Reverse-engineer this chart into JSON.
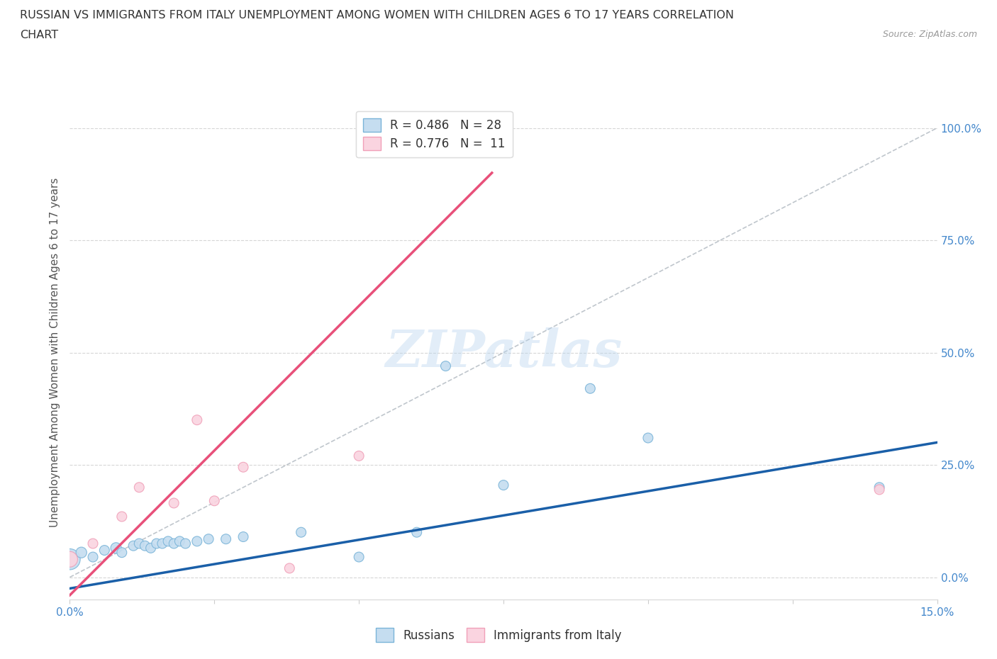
{
  "title_line1": "RUSSIAN VS IMMIGRANTS FROM ITALY UNEMPLOYMENT AMONG WOMEN WITH CHILDREN AGES 6 TO 17 YEARS CORRELATION",
  "title_line2": "CHART",
  "source": "Source: ZipAtlas.com",
  "ylabel": "Unemployment Among Women with Children Ages 6 to 17 years",
  "xlim": [
    0.0,
    0.15
  ],
  "ylim": [
    -0.05,
    1.05
  ],
  "ytick_labels": [
    "0.0%",
    "25.0%",
    "50.0%",
    "75.0%",
    "100.0%"
  ],
  "ytick_vals": [
    0.0,
    0.25,
    0.5,
    0.75,
    1.0
  ],
  "xtick_positions": [
    0.0,
    0.025,
    0.05,
    0.075,
    0.1,
    0.125,
    0.15
  ],
  "xtick_labels": [
    "0.0%",
    "",
    "",
    "",
    "",
    "",
    "15.0%"
  ],
  "bg_color": "#ffffff",
  "grid_color": "#cccccc",
  "watermark": "ZIPatlas",
  "legend_R1": "R = 0.486",
  "legend_N1": "N = 28",
  "legend_R2": "R = 0.776",
  "legend_N2": "N = 11",
  "russian_edge_color": "#7ab4d8",
  "russian_fill_color": "#c5ddf0",
  "italy_edge_color": "#f0a0b8",
  "italy_fill_color": "#fad4e0",
  "trendline_russian_color": "#1a5fa8",
  "trendline_italy_color": "#e8507a",
  "trendline_diagonal_color": "#b0b8c0",
  "russians_x": [
    0.0,
    0.002,
    0.004,
    0.006,
    0.008,
    0.009,
    0.011,
    0.012,
    0.013,
    0.014,
    0.015,
    0.016,
    0.017,
    0.018,
    0.019,
    0.02,
    0.022,
    0.024,
    0.027,
    0.03,
    0.04,
    0.05,
    0.06,
    0.065,
    0.075,
    0.09,
    0.1,
    0.14
  ],
  "russians_y": [
    0.04,
    0.055,
    0.045,
    0.06,
    0.065,
    0.055,
    0.07,
    0.075,
    0.07,
    0.065,
    0.075,
    0.075,
    0.08,
    0.075,
    0.08,
    0.075,
    0.08,
    0.085,
    0.085,
    0.09,
    0.1,
    0.045,
    0.1,
    0.47,
    0.205,
    0.42,
    0.31,
    0.2
  ],
  "russians_size": [
    450,
    120,
    100,
    100,
    120,
    100,
    100,
    100,
    100,
    100,
    100,
    100,
    100,
    100,
    100,
    100,
    100,
    100,
    100,
    100,
    100,
    100,
    100,
    100,
    100,
    100,
    100,
    100
  ],
  "italy_x": [
    0.0,
    0.004,
    0.009,
    0.012,
    0.018,
    0.022,
    0.025,
    0.03,
    0.038,
    0.05,
    0.14
  ],
  "italy_y": [
    0.04,
    0.075,
    0.135,
    0.2,
    0.165,
    0.35,
    0.17,
    0.245,
    0.02,
    0.27,
    0.195
  ],
  "italy_size": [
    250,
    100,
    100,
    100,
    100,
    100,
    100,
    100,
    100,
    100,
    100
  ],
  "italy_trendline_x0": 0.0,
  "italy_trendline_y0": -0.04,
  "italy_trendline_x1": 0.073,
  "italy_trendline_y1": 0.9,
  "russian_trendline_x0": 0.0,
  "russian_trendline_y0": -0.025,
  "russian_trendline_x1": 0.15,
  "russian_trendline_y1": 0.3
}
